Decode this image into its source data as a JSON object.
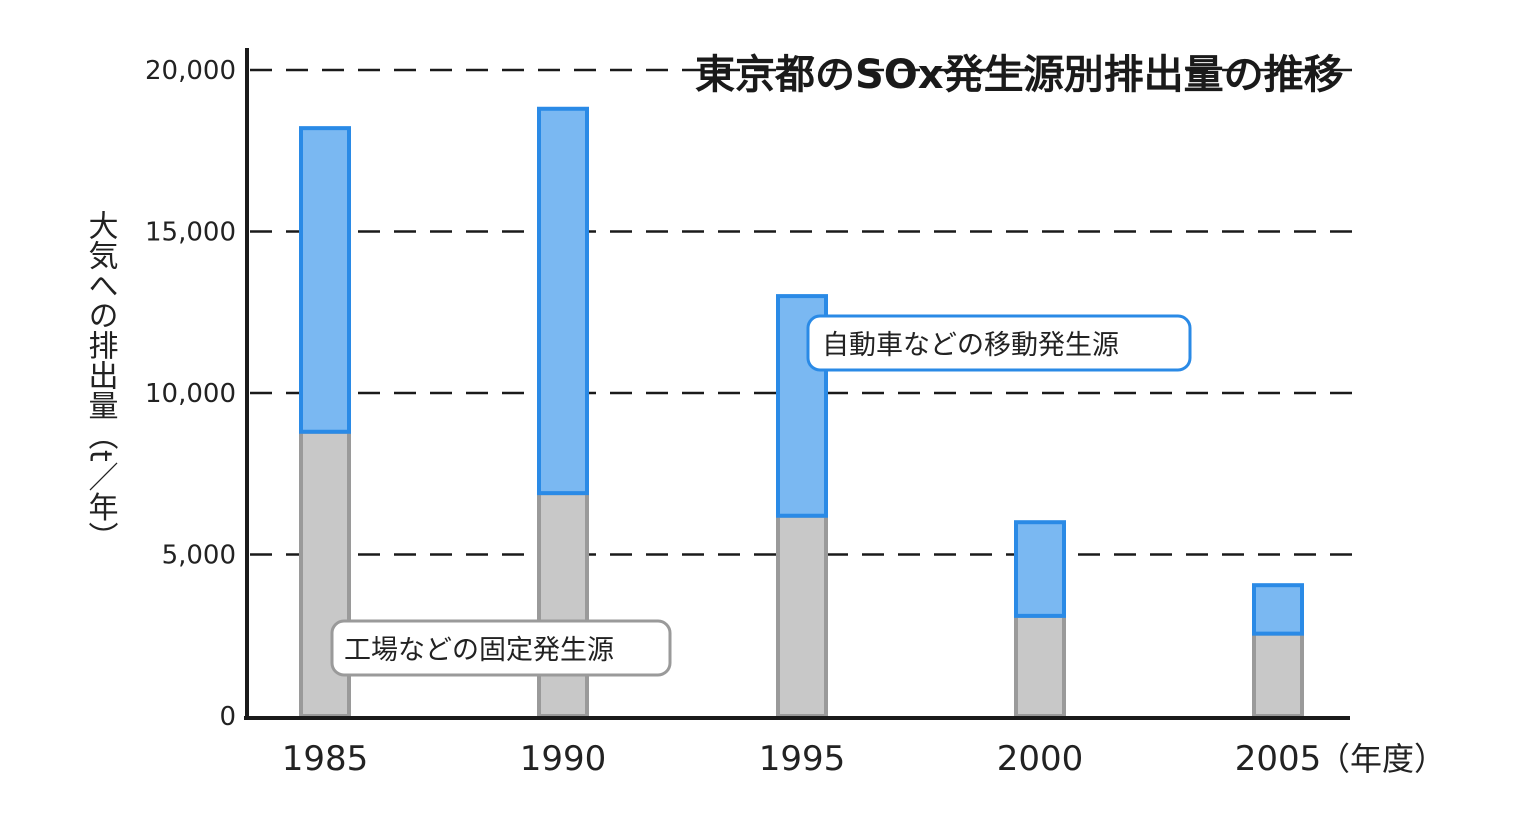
{
  "chart_data": {
    "type": "bar",
    "stacked": true,
    "title": "東京都のSOx発生源別排出量の推移",
    "ylabel": "大気への排出量（t／年）",
    "xlabel": "",
    "x_unit": "（年度）",
    "categories": [
      "1985",
      "1990",
      "1995",
      "2000",
      "2005"
    ],
    "yticks": [
      "0",
      "5,000",
      "10,000",
      "15,000",
      "20,000"
    ],
    "ylim": [
      0,
      20000
    ],
    "grid": "dashed-horizontal",
    "series": [
      {
        "name": "工場などの固定発生源",
        "values": [
          8800,
          6900,
          6200,
          3100,
          2550
        ],
        "color": "#c8c8c8",
        "stroke": "#9a9a9a"
      },
      {
        "name": "自動車などの移動発生源",
        "values": [
          9400,
          11900,
          6800,
          2900,
          1500
        ],
        "color": "#7ab8f2",
        "stroke": "#2a8ae6"
      }
    ]
  }
}
